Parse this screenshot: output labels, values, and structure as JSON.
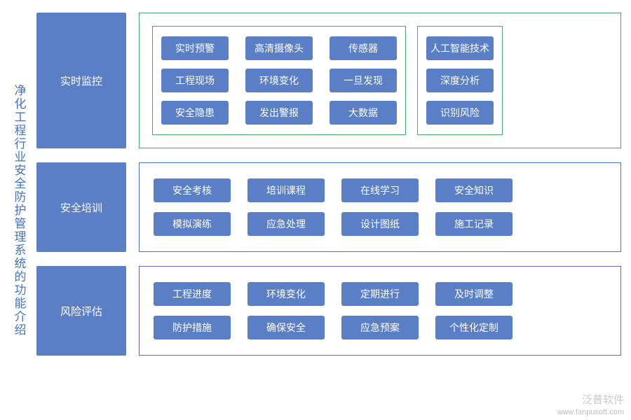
{
  "title": "净化工程行业安全防护管理系统的功能介绍",
  "title_color": "#4472c4",
  "chip_bg": "#5b7fc7",
  "chip_fg": "#ffffff",
  "cat_bg": "#5b7fc7",
  "cat_fg": "#ffffff",
  "sections": [
    {
      "category": "实时监控",
      "border_color": "#4aa564",
      "chip_width": 96,
      "groups": [
        {
          "border_color": "#4aa564",
          "rows": [
            [
              "实时预警",
              "高清摄像头",
              "传感器"
            ],
            [
              "工程现场",
              "环境变化",
              "一旦发现"
            ],
            [
              "安全隐患",
              "发出警报",
              "大数据"
            ]
          ]
        },
        {
          "border_color": "#4aa564",
          "rows": [
            [
              "人工智能技术"
            ],
            [
              "深度分析"
            ],
            [
              "识别风险"
            ]
          ]
        }
      ]
    },
    {
      "category": "安全培训",
      "border_color": "#4472c4",
      "chip_width": 110,
      "groups": [
        {
          "border_color": "transparent",
          "rows": [
            [
              "安全考核",
              "培训课程",
              "在线学习",
              "安全知识"
            ],
            [
              "模拟演练",
              "应急处理",
              "设计图纸",
              "施工记录"
            ]
          ]
        }
      ]
    },
    {
      "category": "风险评估",
      "border_color": "#7a5ea8",
      "chip_width": 110,
      "groups": [
        {
          "border_color": "transparent",
          "rows": [
            [
              "工程进度",
              "环境变化",
              "定期进行",
              "及时调整"
            ],
            [
              "防护措施",
              "确保安全",
              "应急预案",
              "个性化定制"
            ]
          ]
        }
      ]
    }
  ],
  "watermark": {
    "brand": "泛普软件",
    "url": "www.fanpusoft.com"
  }
}
